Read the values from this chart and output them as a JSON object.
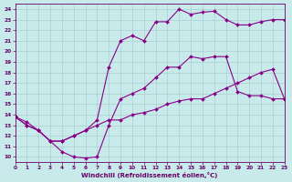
{
  "xlabel": "Windchill (Refroidissement éolien,°C)",
  "xlim": [
    0,
    23
  ],
  "ylim": [
    9.5,
    24.5
  ],
  "xticks": [
    0,
    1,
    2,
    3,
    4,
    5,
    6,
    7,
    8,
    9,
    10,
    11,
    12,
    13,
    14,
    15,
    16,
    17,
    18,
    19,
    20,
    21,
    22,
    23
  ],
  "yticks": [
    10,
    11,
    12,
    13,
    14,
    15,
    16,
    17,
    18,
    19,
    20,
    21,
    22,
    23,
    24
  ],
  "background_color": "#c8eaea",
  "grid_color": "#aacfcf",
  "line_color": "#880088",
  "line1_x": [
    0,
    1,
    2,
    3,
    4,
    5,
    6,
    7,
    8,
    9,
    10,
    11,
    12,
    13,
    14,
    15,
    16,
    17,
    18,
    19,
    20,
    21,
    22,
    23
  ],
  "line1_y": [
    13.8,
    13.3,
    12.5,
    11.5,
    10.5,
    10.0,
    9.9,
    10.0,
    13.0,
    15.5,
    16.0,
    16.5,
    17.5,
    18.5,
    18.5,
    19.5,
    19.3,
    19.5,
    19.5,
    16.2,
    15.8,
    15.8,
    15.5,
    15.5
  ],
  "line2_x": [
    0,
    1,
    2,
    3,
    4,
    5,
    6,
    7,
    8,
    9,
    10,
    11,
    12,
    13,
    14,
    15,
    16,
    17,
    18,
    19,
    20,
    21,
    22,
    23
  ],
  "line2_y": [
    13.8,
    13.0,
    12.5,
    11.5,
    11.5,
    12.0,
    12.5,
    13.5,
    18.5,
    21.0,
    21.5,
    21.0,
    22.8,
    22.8,
    24.0,
    23.5,
    23.7,
    23.8,
    23.0,
    22.5,
    22.5,
    22.8,
    23.0,
    23.0
  ],
  "line3_x": [
    0,
    1,
    2,
    3,
    4,
    5,
    6,
    7,
    8,
    9,
    10,
    11,
    12,
    13,
    14,
    15,
    16,
    17,
    18,
    19,
    20,
    21,
    22,
    23
  ],
  "line3_y": [
    13.8,
    13.0,
    12.5,
    11.5,
    11.5,
    12.0,
    12.5,
    13.0,
    13.5,
    13.5,
    14.0,
    14.2,
    14.5,
    15.0,
    15.3,
    15.5,
    15.5,
    16.0,
    16.5,
    17.0,
    17.5,
    18.0,
    18.3,
    15.5
  ]
}
